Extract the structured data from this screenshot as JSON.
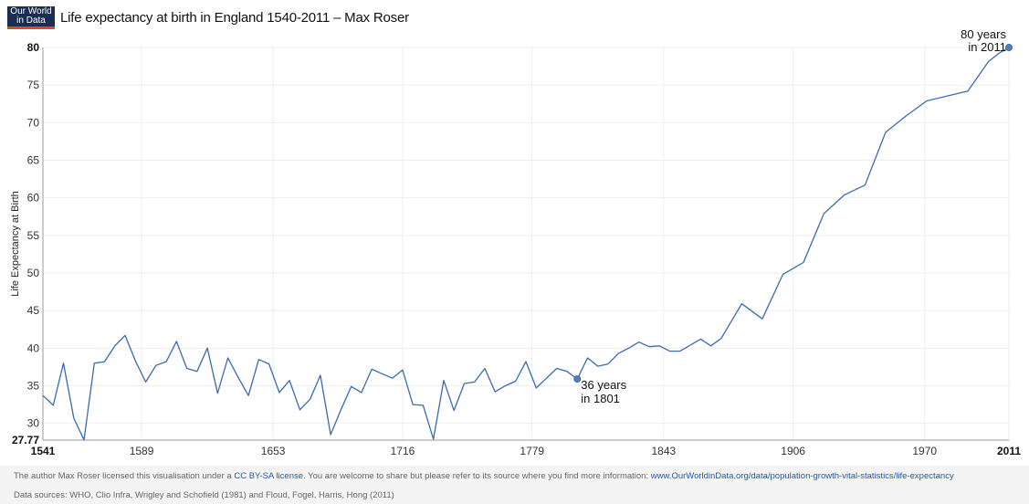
{
  "logo": {
    "line1": "Our World",
    "line2": "in Data"
  },
  "header": {
    "title": "Life expectancy at birth in England 1540-2011 – Max Roser"
  },
  "footer": {
    "license_prefix": "The author Max Roser licensed this visualisation under a ",
    "license_link": "CC BY-SA license",
    "license_middle": ". You are welcome to share but please refer to its source where you find more information: ",
    "source_link": "www.OurWorldinData.org/data/population-growth-vital-statistics/life-expectancy",
    "sources": "Data sources: WHO, Clio Infra, Wrigley and Schofield (1981) and Floud, Fogel, Harris, Hong (2011)"
  },
  "chart_data": {
    "type": "line",
    "title": "Life expectancy at birth in England 1540-2011 – Max Roser",
    "xlabel": "",
    "ylabel": "Life Expectancy at Birth",
    "xlim": [
      1541,
      2011
    ],
    "ylim": [
      27.77,
      80
    ],
    "x_ticks": [
      "1541",
      "1589",
      "1653",
      "1716",
      "1779",
      "1843",
      "1906",
      "1970",
      "2011"
    ],
    "y_ticks": [
      "80",
      "75",
      "70",
      "65",
      "60",
      "55",
      "50",
      "45",
      "40",
      "35",
      "30",
      "27.77"
    ],
    "grid": true,
    "line_color": "#3a6ab0",
    "series": [
      {
        "x": [
          1541,
          1546,
          1551,
          1556,
          1561,
          1566,
          1571,
          1576,
          1581,
          1586,
          1591,
          1596,
          1601,
          1606,
          1611,
          1616,
          1621,
          1626,
          1631,
          1636,
          1641,
          1646,
          1651,
          1656,
          1661,
          1666,
          1671,
          1676,
          1681,
          1686,
          1691,
          1696,
          1701,
          1706,
          1711,
          1716,
          1721,
          1726,
          1731,
          1736,
          1741,
          1746,
          1751,
          1756,
          1761,
          1766,
          1771,
          1776,
          1781,
          1786,
          1791,
          1796,
          1801,
          1806,
          1811,
          1816,
          1821,
          1826,
          1831,
          1836,
          1841,
          1846,
          1851,
          1856,
          1861,
          1866,
          1871,
          1881,
          1891,
          1901,
          1911,
          1921,
          1931,
          1941,
          1951,
          1961,
          1971,
          1991,
          2001,
          2006,
          2011
        ],
        "y": [
          33.7,
          32.4,
          38.0,
          30.7,
          27.8,
          38.0,
          38.2,
          40.3,
          41.7,
          38.3,
          35.5,
          37.7,
          38.2,
          40.9,
          37.3,
          36.9,
          40.0,
          34.0,
          38.7,
          36.1,
          33.7,
          38.5,
          37.9,
          34.1,
          35.7,
          31.8,
          33.2,
          36.4,
          28.5,
          31.8,
          34.9,
          34.1,
          37.2,
          36.6,
          36.0,
          37.1,
          32.5,
          32.4,
          27.9,
          35.7,
          31.7,
          35.3,
          35.5,
          37.3,
          34.2,
          35.0,
          35.6,
          38.2,
          34.7,
          36.0,
          37.3,
          36.9,
          35.9,
          38.7,
          37.6,
          37.9,
          39.3,
          40.0,
          40.8,
          40.2,
          40.3,
          39.6,
          39.6,
          40.4,
          41.2,
          40.3,
          41.3,
          45.9,
          43.9,
          49.8,
          51.4,
          57.9,
          60.4,
          61.7,
          68.7,
          70.9,
          72.9,
          74.2,
          78.1,
          79.2,
          80.0
        ]
      }
    ],
    "annotations": [
      {
        "x": 1801,
        "y": 35.9,
        "line1": "36 years",
        "line2": "in 1801"
      },
      {
        "x": 2011,
        "y": 80.0,
        "line1": "80 years",
        "line2": "in 2011"
      }
    ]
  }
}
